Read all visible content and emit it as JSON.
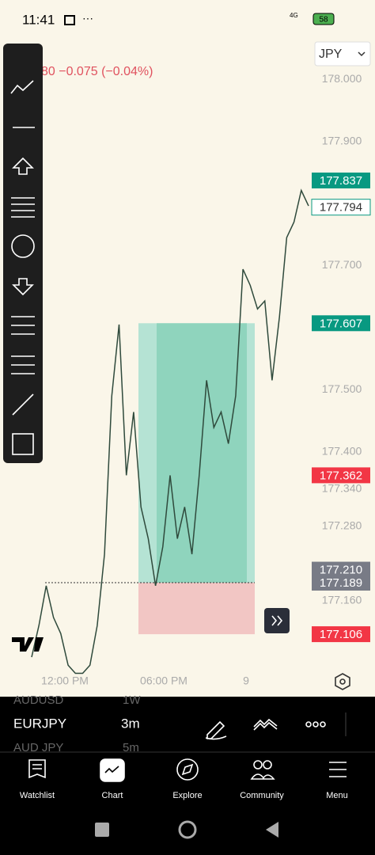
{
  "status_bar": {
    "time": "11:41",
    "network": "4G",
    "battery": "58"
  },
  "header": {
    "change": "80 −0.075 (−0.04%)",
    "currency": "JPY"
  },
  "chart_data": {
    "type": "line",
    "values": [
      177.069,
      177.12,
      177.184,
      177.133,
      177.107,
      177.056,
      177.043,
      177.043,
      177.056,
      177.12,
      177.235,
      177.49,
      177.605,
      177.362,
      177.464,
      177.311,
      177.26,
      177.184,
      177.247,
      177.362,
      177.26,
      177.311,
      177.235,
      177.362,
      177.515,
      177.439,
      177.464,
      177.413,
      177.49,
      177.694,
      177.668,
      177.63,
      177.643,
      177.515,
      177.617,
      177.745,
      177.77,
      177.821,
      177.796
    ],
    "color": "#2f4a3c",
    "ylim": [
      177.05,
      178.064
    ],
    "yticks": [
      {
        "value": 178,
        "label": "178.000"
      },
      {
        "value": 177.9,
        "label": "177.900"
      },
      {
        "value": 177.7,
        "label": "177.700"
      },
      {
        "value": 177.5,
        "label": "177.500"
      },
      {
        "value": 177.4,
        "label": "177.400"
      },
      {
        "value": 177.34,
        "label": "177.340"
      },
      {
        "value": 177.28,
        "label": "177.280"
      },
      {
        "value": 177.16,
        "label": "177.160"
      }
    ],
    "price_labels": [
      177.837,
      177.794,
      177.607,
      177.362,
      {
        "value": 177.21,
        "label": "177.210"
      },
      177.189,
      177.106
    ],
    "price_label_colors": [
      "#089981",
      "#ffffff",
      "#089981",
      "#f23645",
      "#787b86",
      "#787b86",
      "#f23645"
    ],
    "x_labels": [
      "12:00 PM",
      "06:00 PM",
      "9"
    ]
  },
  "symbols": [
    {
      "symbol": "AUDUSD",
      "interval": "1W"
    },
    {
      "symbol": "EURJPY",
      "interval": "3m"
    },
    {
      "symbol": "AUD JPY",
      "interval": "5m"
    }
  ],
  "nav": [
    "Watchlist",
    "Chart",
    "Explore",
    "Community",
    "Menu"
  ]
}
